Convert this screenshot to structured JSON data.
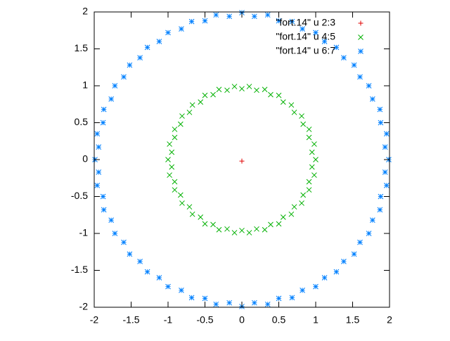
{
  "chart_data": {
    "type": "scatter",
    "xlim": [
      -2,
      2
    ],
    "ylim": [
      -2,
      2
    ],
    "xticks": [
      -2,
      -1.5,
      -1,
      -0.5,
      0,
      0.5,
      1,
      1.5,
      2
    ],
    "yticks": [
      -2,
      -1.5,
      -1,
      -0.5,
      0,
      0.5,
      1,
      1.5,
      2
    ],
    "legend": "top-right",
    "series": [
      {
        "name": "\"fort.14\" u 2:3",
        "color": "#e00000",
        "point_type": "plus",
        "x": [
          0
        ],
        "y": [
          -0.02
        ]
      },
      {
        "name": "\"fort.14\" u 4:5",
        "color": "#00b000",
        "point_type": "cross",
        "x": [
          1,
          0.95,
          0.98,
          0.91,
          0.91,
          0.83,
          0.81,
          0.71,
          0.67,
          0.56,
          0.5,
          0.39,
          0.31,
          0.2,
          0.1,
          0,
          -0.1,
          -0.2,
          -0.31,
          -0.39,
          -0.5,
          -0.56,
          -0.67,
          -0.71,
          -0.81,
          -0.83,
          -0.91,
          -0.91,
          -0.98,
          -0.95,
          -1,
          -0.95,
          -0.98,
          -0.91,
          -0.91,
          -0.83,
          -0.81,
          -0.71,
          -0.67,
          -0.56,
          -0.5,
          -0.39,
          -0.31,
          -0.2,
          -0.1,
          0,
          0.1,
          0.2,
          0.31,
          0.39,
          0.5,
          0.56,
          0.67,
          0.71,
          0.81,
          0.83,
          0.91,
          0.91,
          0.98,
          0.95
        ],
        "y": [
          0,
          0.1,
          0.21,
          0.3,
          0.41,
          0.48,
          0.59,
          0.64,
          0.74,
          0.78,
          0.87,
          0.88,
          0.95,
          0.94,
          0.99,
          0.96,
          0.99,
          0.94,
          0.95,
          0.88,
          0.87,
          0.78,
          0.74,
          0.64,
          0.59,
          0.48,
          0.41,
          0.3,
          0.21,
          0.1,
          0,
          -0.1,
          -0.21,
          -0.3,
          -0.41,
          -0.48,
          -0.59,
          -0.64,
          -0.74,
          -0.78,
          -0.87,
          -0.88,
          -0.95,
          -0.94,
          -0.99,
          -0.96,
          -0.99,
          -0.94,
          -0.95,
          -0.88,
          -0.87,
          -0.78,
          -0.74,
          -0.64,
          -0.59,
          -0.48,
          -0.41,
          -0.3,
          -0.21,
          -0.1
        ]
      },
      {
        "name": "\"fort.14\" u 6:7",
        "color": "#0080ff",
        "point_type": "star",
        "x": [
          1.99,
          1.94,
          1.96,
          1.88,
          1.87,
          1.77,
          1.72,
          1.6,
          1.52,
          1.38,
          1.28,
          1.12,
          1,
          0.82,
          0.68,
          0.5,
          0.35,
          0.17,
          0,
          -0.17,
          -0.35,
          -0.5,
          -0.68,
          -0.82,
          -1,
          -1.12,
          -1.28,
          -1.38,
          -1.52,
          -1.6,
          -1.72,
          -1.77,
          -1.87,
          -1.88,
          -1.96,
          -1.94,
          -1.99,
          -1.94,
          -1.96,
          -1.88,
          -1.87,
          -1.77,
          -1.72,
          -1.6,
          -1.52,
          -1.38,
          -1.28,
          -1.12,
          -1,
          -0.82,
          -0.68,
          -0.5,
          -0.35,
          -0.17,
          0,
          0.17,
          0.35,
          0.5,
          0.68,
          0.82,
          1,
          1.12,
          1.28,
          1.38,
          1.52,
          1.6,
          1.72,
          1.77,
          1.87,
          1.88,
          1.96,
          1.94
        ],
        "y": [
          0,
          0.17,
          0.35,
          0.5,
          0.68,
          0.82,
          1,
          1.12,
          1.28,
          1.38,
          1.52,
          1.6,
          1.72,
          1.77,
          1.87,
          1.88,
          1.96,
          1.94,
          1.99,
          1.94,
          1.96,
          1.88,
          1.87,
          1.77,
          1.72,
          1.6,
          1.52,
          1.38,
          1.28,
          1.12,
          1,
          0.82,
          0.68,
          0.5,
          0.35,
          0.17,
          0,
          -0.17,
          -0.35,
          -0.5,
          -0.68,
          -0.82,
          -1,
          -1.12,
          -1.28,
          -1.38,
          -1.52,
          -1.6,
          -1.72,
          -1.77,
          -1.87,
          -1.88,
          -1.96,
          -1.94,
          -1.99,
          -1.94,
          -1.96,
          -1.88,
          -1.87,
          -1.77,
          -1.72,
          -1.6,
          -1.52,
          -1.38,
          -1.28,
          -1.12,
          -1,
          -0.82,
          -0.68,
          -0.5,
          -0.35,
          -0.17
        ]
      }
    ]
  }
}
